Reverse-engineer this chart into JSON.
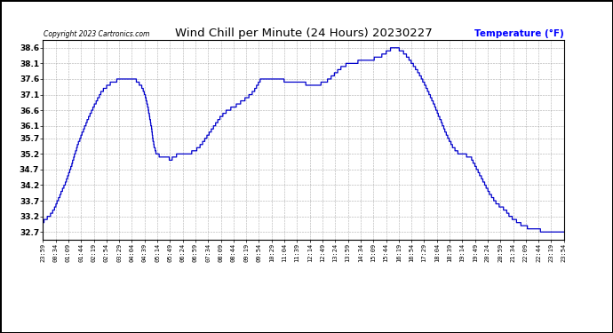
{
  "title": "Wind Chill per Minute (24 Hours) 20230227",
  "ylabel": "Temperature (°F)",
  "ylabel_color": "#0000ff",
  "copyright_text": "Copyright 2023 Cartronics.com",
  "line_color": "#0000cc",
  "background_color": "#ffffff",
  "plot_bg_color": "#ffffff",
  "grid_color": "#999999",
  "ylim_min": 32.45,
  "ylim_max": 38.85,
  "yticks": [
    32.7,
    33.2,
    33.7,
    34.2,
    34.7,
    35.2,
    35.7,
    36.1,
    36.6,
    37.1,
    37.6,
    38.1,
    38.6
  ],
  "xtick_labels": [
    "23:59",
    "00:34",
    "01:09",
    "01:44",
    "02:19",
    "02:54",
    "03:29",
    "04:04",
    "04:39",
    "05:14",
    "05:49",
    "06:24",
    "06:59",
    "07:34",
    "08:09",
    "08:44",
    "09:19",
    "09:54",
    "10:29",
    "11:04",
    "11:39",
    "12:14",
    "12:49",
    "13:24",
    "13:59",
    "14:34",
    "15:09",
    "15:44",
    "16:19",
    "16:54",
    "17:29",
    "18:04",
    "18:39",
    "19:14",
    "19:49",
    "20:24",
    "20:59",
    "21:34",
    "22:09",
    "22:44",
    "23:19",
    "23:54"
  ],
  "keypoints_h": [
    0.0,
    0.1,
    0.3,
    0.5,
    0.8,
    1.0,
    1.3,
    1.6,
    2.0,
    2.4,
    2.7,
    3.0,
    3.2,
    3.4,
    3.6,
    3.8,
    4.0,
    4.1,
    4.3,
    4.5,
    4.65,
    4.8,
    5.0,
    5.1,
    5.2,
    5.35,
    5.5,
    5.65,
    5.75,
    5.82,
    5.88,
    5.95,
    6.05,
    6.15,
    6.3,
    6.5,
    6.7,
    7.0,
    7.3,
    7.6,
    7.9,
    8.2,
    8.5,
    8.8,
    9.1,
    9.4,
    9.7,
    10.0,
    10.2,
    10.4,
    10.6,
    10.8,
    11.0,
    11.2,
    11.4,
    11.6,
    11.8,
    12.0,
    12.2,
    12.5,
    12.8,
    13.0,
    13.2,
    13.5,
    13.8,
    14.1,
    14.5,
    15.0,
    15.5,
    16.0,
    16.2,
    16.4,
    16.6,
    16.8,
    17.0,
    17.3,
    17.6,
    18.0,
    18.3,
    18.6,
    18.9,
    19.1,
    19.3,
    19.5,
    19.7,
    20.0,
    20.3,
    20.6,
    20.9,
    21.1,
    21.3,
    21.5,
    21.7,
    21.9,
    22.1,
    22.3,
    22.5,
    22.7,
    22.9,
    23.1,
    23.3,
    23.5,
    23.7,
    23.9,
    24.0
  ],
  "keypoints_v": [
    33.0,
    33.1,
    33.2,
    33.4,
    33.9,
    34.2,
    34.8,
    35.5,
    36.2,
    36.8,
    37.2,
    37.4,
    37.5,
    37.55,
    37.6,
    37.6,
    37.55,
    37.6,
    37.55,
    37.4,
    37.2,
    36.8,
    36.0,
    35.5,
    35.25,
    35.15,
    35.1,
    35.05,
    35.15,
    35.05,
    35.0,
    35.05,
    35.1,
    35.15,
    35.2,
    35.25,
    35.2,
    35.3,
    35.5,
    35.8,
    36.1,
    36.4,
    36.6,
    36.7,
    36.85,
    37.0,
    37.2,
    37.55,
    37.6,
    37.62,
    37.6,
    37.62,
    37.6,
    37.5,
    37.55,
    37.45,
    37.55,
    37.5,
    37.4,
    37.35,
    37.45,
    37.5,
    37.6,
    37.8,
    38.0,
    38.1,
    38.15,
    38.2,
    38.3,
    38.55,
    38.6,
    38.55,
    38.45,
    38.3,
    38.1,
    37.8,
    37.4,
    36.8,
    36.3,
    35.8,
    35.4,
    35.25,
    35.2,
    35.15,
    35.1,
    34.7,
    34.3,
    33.9,
    33.6,
    33.5,
    33.4,
    33.2,
    33.1,
    33.0,
    32.9,
    32.85,
    32.8,
    32.77,
    32.75,
    32.73,
    32.72,
    32.71,
    32.7,
    32.7,
    32.7
  ]
}
